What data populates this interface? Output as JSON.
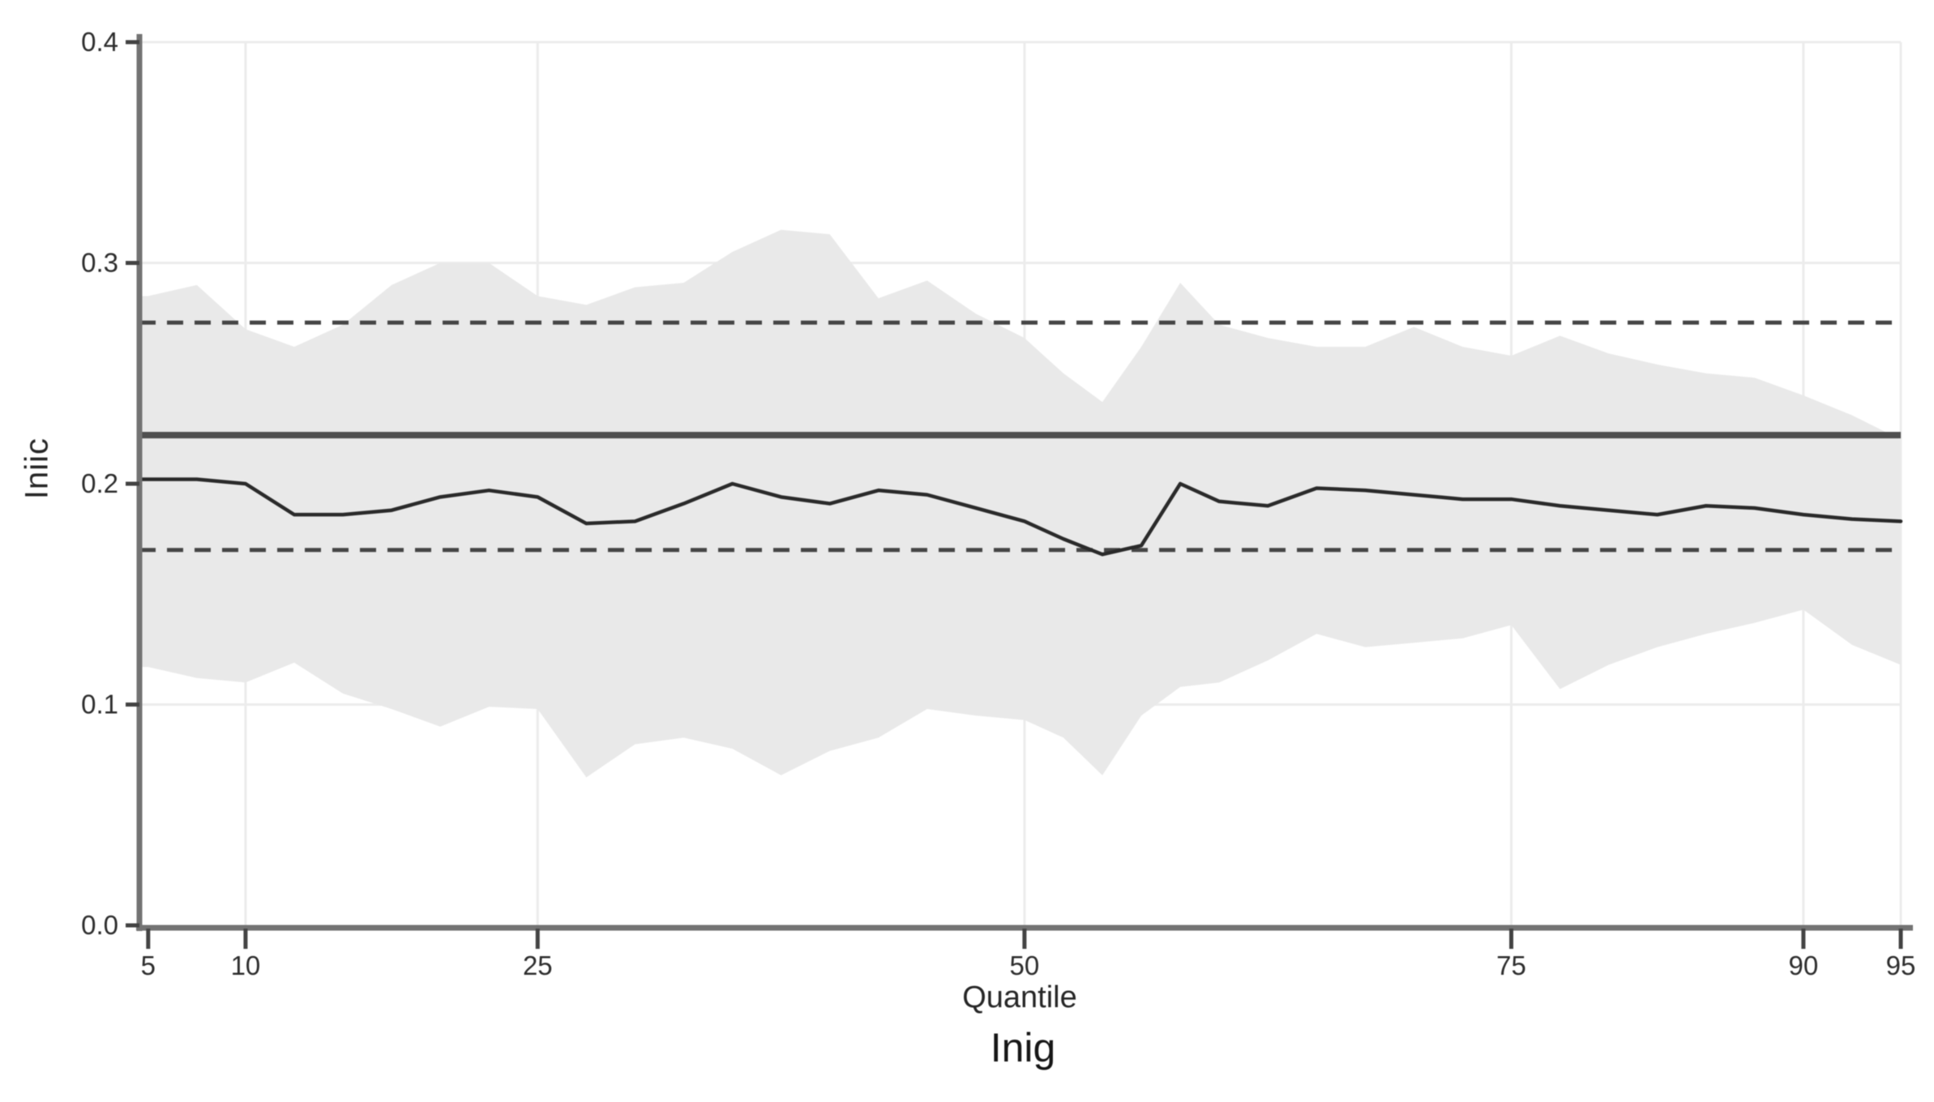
{
  "chart_data": {
    "type": "line",
    "title": "Inig",
    "xlabel": "Quantile",
    "ylabel": "Iniic",
    "xlim": [
      4.55,
      95
    ],
    "ylim": [
      0.0,
      0.4
    ],
    "grid": true,
    "legend": "none",
    "x_ticks": [
      5,
      10,
      25,
      50,
      75,
      90,
      95
    ],
    "x_gridlines": [
      10,
      25,
      50,
      75,
      90,
      95
    ],
    "y_ticks": [
      {
        "value": 0.0,
        "label": "0.0"
      },
      {
        "value": 0.1,
        "label": "0.1"
      },
      {
        "value": 0.2,
        "label": "0.2"
      },
      {
        "value": 0.3,
        "label": "0.3"
      },
      {
        "value": 0.4,
        "label": "0.4"
      }
    ],
    "quantiles": [
      4.55,
      5,
      7.5,
      10,
      12.5,
      15,
      17.5,
      20,
      22.5,
      25,
      27.5,
      30,
      32.5,
      35,
      37.5,
      40,
      42.5,
      45,
      47.5,
      50,
      52,
      54,
      56,
      58,
      60,
      62.5,
      65,
      67.5,
      70,
      72.5,
      75,
      77.5,
      80,
      82.5,
      85,
      87.5,
      90,
      92.5,
      95
    ],
    "series": [
      {
        "name": "quantile-coefficient",
        "values": [
          0.202,
          0.202,
          0.202,
          0.2,
          0.186,
          0.186,
          0.188,
          0.194,
          0.197,
          0.194,
          0.182,
          0.183,
          0.191,
          0.2,
          0.194,
          0.191,
          0.197,
          0.195,
          0.189,
          0.183,
          0.175,
          0.168,
          0.172,
          0.2,
          0.192,
          0.19,
          0.198,
          0.197,
          0.195,
          0.193,
          0.193,
          0.19,
          0.188,
          0.186,
          0.19,
          0.189,
          0.186,
          0.184,
          0.183
        ]
      },
      {
        "name": "ci-band-upper",
        "values": [
          0.285,
          0.285,
          0.29,
          0.27,
          0.262,
          0.272,
          0.29,
          0.3,
          0.3,
          0.285,
          0.281,
          0.289,
          0.291,
          0.305,
          0.315,
          0.313,
          0.284,
          0.292,
          0.277,
          0.266,
          0.25,
          0.237,
          0.262,
          0.291,
          0.272,
          0.266,
          0.262,
          0.262,
          0.271,
          0.262,
          0.258,
          0.267,
          0.259,
          0.254,
          0.25,
          0.248,
          0.24,
          0.231,
          0.22
        ]
      },
      {
        "name": "ci-band-lower",
        "values": [
          0.117,
          0.117,
          0.112,
          0.11,
          0.119,
          0.105,
          0.098,
          0.09,
          0.099,
          0.098,
          0.067,
          0.082,
          0.085,
          0.08,
          0.068,
          0.079,
          0.085,
          0.098,
          0.095,
          0.093,
          0.085,
          0.068,
          0.095,
          0.108,
          0.11,
          0.12,
          0.132,
          0.126,
          0.128,
          0.13,
          0.136,
          0.107,
          0.118,
          0.126,
          0.132,
          0.137,
          0.143,
          0.127,
          0.118
        ]
      }
    ],
    "reference_lines": [
      {
        "name": "ols-coefficient",
        "value": 0.222,
        "style": "solid"
      },
      {
        "name": "ols-ci-upper",
        "value": 0.273,
        "style": "dashed"
      },
      {
        "name": "ols-ci-lower",
        "value": 0.17,
        "style": "dashed"
      }
    ],
    "colors": {
      "band": "#e9e9e9",
      "coefficient_line": "#2a2a2a",
      "ols_line": "#4f4f4f",
      "ols_ci_line": "#454545",
      "grid": "#ececec",
      "axis": "#737373",
      "tick": "#434343",
      "text": "#2d2d2d",
      "background": "#ffffff"
    }
  }
}
